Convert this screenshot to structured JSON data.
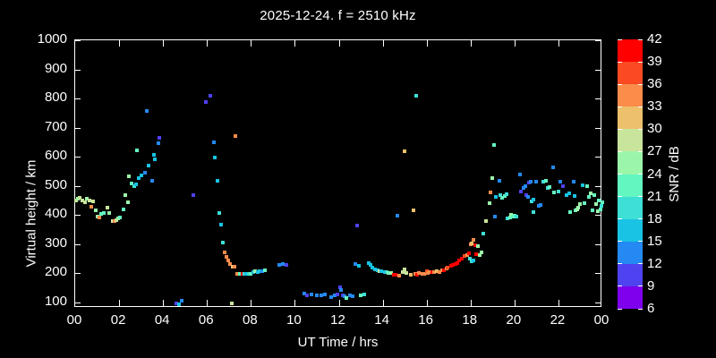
{
  "title": "2025-12-24. f = 2510 kHz",
  "axes": {
    "y_label": "Virtual height / km",
    "x_label": "UT Time / hrs",
    "y_ticks": [
      1000,
      900,
      800,
      700,
      600,
      500,
      400,
      300,
      200,
      100
    ],
    "x_ticks": [
      "00",
      "02",
      "04",
      "06",
      "08",
      "10",
      "12",
      "14",
      "16",
      "18",
      "20",
      "22",
      "00"
    ]
  },
  "colorbar": {
    "label": "SNR / dB",
    "tick_values": [
      42,
      39,
      36,
      33,
      30,
      27,
      24,
      21,
      18,
      15,
      12,
      9,
      6
    ],
    "range": [
      6,
      42
    ],
    "colors_top_to_bottom": [
      "#FF0000",
      "#FB4A21",
      "#FB8C4A",
      "#EDC06C",
      "#C9E49B",
      "#9CF6A9",
      "#63F6C1",
      "#3EDFD5",
      "#18C3E4",
      "#2489F2",
      "#4F42F1",
      "#7E00EC"
    ]
  },
  "chart_data": {
    "type": "scatter",
    "title": "2025-12-24. f = 2510 kHz",
    "xlabel": "UT Time / hrs",
    "ylabel": "Virtual height / km",
    "xlim": [
      0,
      24
    ],
    "ylim": [
      100,
      1000
    ],
    "grid": false,
    "colorbar_label": "SNR / dB",
    "colorbar_range": [
      6,
      42
    ],
    "point_format": [
      "ut_hour",
      "virtual_height_km",
      "snr_db"
    ],
    "points": [
      [
        0.02,
        450,
        28.5
      ],
      [
        0.12,
        455,
        25.5
      ],
      [
        0.22,
        458,
        28.5
      ],
      [
        0.32,
        450,
        28.5
      ],
      [
        0.45,
        445,
        28.5
      ],
      [
        0.55,
        456,
        25.5
      ],
      [
        0.65,
        450,
        28.5
      ],
      [
        0.72,
        428,
        34.5
      ],
      [
        0.82,
        448,
        28.5
      ],
      [
        0.92,
        416,
        25.5
      ],
      [
        1.0,
        394,
        25.5
      ],
      [
        1.1,
        392,
        34.5
      ],
      [
        1.2,
        404,
        22.5
      ],
      [
        1.3,
        406,
        22.5
      ],
      [
        1.45,
        427,
        28.5
      ],
      [
        1.56,
        408,
        25.5
      ],
      [
        1.7,
        380,
        28.5
      ],
      [
        1.8,
        378,
        34.5
      ],
      [
        1.88,
        382,
        28.5
      ],
      [
        1.95,
        390,
        25.5
      ],
      [
        2.05,
        392,
        22.5
      ],
      [
        2.2,
        418,
        22.5
      ],
      [
        2.3,
        470,
        25.5
      ],
      [
        2.42,
        444,
        25.5
      ],
      [
        2.45,
        534,
        25.5
      ],
      [
        2.57,
        508,
        22.5
      ],
      [
        2.7,
        498,
        19.5
      ],
      [
        2.78,
        505,
        16.5
      ],
      [
        2.8,
        623,
        22.5
      ],
      [
        2.9,
        528,
        16.5
      ],
      [
        3.0,
        536,
        16.5
      ],
      [
        3.17,
        544,
        13.5
      ],
      [
        3.27,
        756,
        13.5
      ],
      [
        3.34,
        569,
        16.5
      ],
      [
        3.5,
        518,
        13.5
      ],
      [
        3.57,
        608,
        16.5
      ],
      [
        3.62,
        592,
        16.5
      ],
      [
        3.79,
        647,
        13.5
      ],
      [
        3.85,
        664,
        10.5
      ],
      [
        4.6,
        97,
        10.5
      ],
      [
        4.72,
        94,
        16.5
      ],
      [
        4.85,
        105,
        13.5
      ],
      [
        5.38,
        470,
        10.5
      ],
      [
        5.95,
        787,
        10.5
      ],
      [
        6.17,
        810,
        10.5
      ],
      [
        6.3,
        649,
        13.5
      ],
      [
        6.37,
        598,
        16.5
      ],
      [
        6.49,
        518,
        16.5
      ],
      [
        6.55,
        408,
        19.5
      ],
      [
        6.64,
        367,
        16.5
      ],
      [
        6.74,
        306,
        19.5
      ],
      [
        6.82,
        272,
        34.5
      ],
      [
        6.9,
        258,
        34.5
      ],
      [
        6.98,
        244,
        34.5
      ],
      [
        7.06,
        232,
        34.5
      ],
      [
        7.12,
        96,
        28.5
      ],
      [
        7.17,
        224,
        31.5
      ],
      [
        7.24,
        222,
        34.5
      ],
      [
        7.28,
        672,
        34.5
      ],
      [
        7.38,
        198,
        34.5
      ],
      [
        7.5,
        199,
        22.5
      ],
      [
        7.6,
        199,
        40.5
      ],
      [
        7.7,
        197,
        19.5
      ],
      [
        7.8,
        198,
        16.5
      ],
      [
        7.9,
        198,
        19.5
      ],
      [
        8.0,
        198,
        22.5
      ],
      [
        8.1,
        204,
        16.5
      ],
      [
        8.2,
        206,
        25.5
      ],
      [
        8.3,
        204,
        16.5
      ],
      [
        8.4,
        208,
        16.5
      ],
      [
        8.5,
        209,
        13.5
      ],
      [
        8.65,
        212,
        22.5
      ],
      [
        9.3,
        228,
        13.5
      ],
      [
        9.45,
        233,
        13.5
      ],
      [
        9.6,
        230,
        10.5
      ],
      [
        10.45,
        130,
        13.5
      ],
      [
        10.57,
        125,
        10.5
      ],
      [
        10.75,
        128,
        13.5
      ],
      [
        11.0,
        126,
        13.5
      ],
      [
        11.2,
        126,
        13.5
      ],
      [
        11.35,
        129,
        13.5
      ],
      [
        11.65,
        118,
        13.5
      ],
      [
        11.8,
        124,
        13.5
      ],
      [
        11.95,
        127,
        10.5
      ],
      [
        12.05,
        152,
        10.5
      ],
      [
        12.12,
        143,
        13.5
      ],
      [
        12.18,
        125,
        10.5
      ],
      [
        12.28,
        120,
        13.5
      ],
      [
        12.35,
        115,
        22.5
      ],
      [
        12.5,
        124,
        13.5
      ],
      [
        12.62,
        122,
        13.5
      ],
      [
        13.0,
        125,
        22.5
      ],
      [
        13.15,
        128,
        19.5
      ],
      [
        12.75,
        232,
        13.5
      ],
      [
        12.9,
        226,
        16.5
      ],
      [
        12.82,
        364,
        10.5
      ],
      [
        13.38,
        236,
        16.5
      ],
      [
        13.45,
        228,
        16.5
      ],
      [
        13.52,
        220,
        16.5
      ],
      [
        13.65,
        214,
        16.5
      ],
      [
        13.76,
        212,
        16.5
      ],
      [
        13.85,
        208,
        28.5
      ],
      [
        13.95,
        208,
        16.5
      ],
      [
        14.08,
        205,
        16.5
      ],
      [
        14.18,
        204,
        19.5
      ],
      [
        14.25,
        201,
        25.5
      ],
      [
        14.32,
        200,
        22.5
      ],
      [
        14.4,
        200,
        25.5
      ],
      [
        14.5,
        196,
        40.5
      ],
      [
        14.6,
        195,
        40.5
      ],
      [
        14.75,
        192,
        34.5
      ],
      [
        14.9,
        203,
        28.5
      ],
      [
        15.0,
        214,
        28.5
      ],
      [
        15.07,
        202,
        28.5
      ],
      [
        15.3,
        195,
        31.5
      ],
      [
        15.48,
        197,
        34.5
      ],
      [
        15.58,
        195,
        40.5
      ],
      [
        15.66,
        201,
        34.5
      ],
      [
        15.8,
        199,
        34.5
      ],
      [
        15.9,
        198,
        34.5
      ],
      [
        16.0,
        208,
        37.5
      ],
      [
        16.07,
        200,
        34.5
      ],
      [
        16.15,
        204,
        34.5
      ],
      [
        16.25,
        205,
        40.5
      ],
      [
        16.35,
        203,
        34.5
      ],
      [
        16.48,
        206,
        31.5
      ],
      [
        16.57,
        205,
        34.5
      ],
      [
        16.7,
        212,
        34.5
      ],
      [
        16.8,
        210,
        40.5
      ],
      [
        16.9,
        216,
        34.5
      ],
      [
        16.97,
        220,
        37.5
      ],
      [
        17.1,
        226,
        40.5
      ],
      [
        17.2,
        230,
        40.5
      ],
      [
        17.3,
        233,
        40.5
      ],
      [
        17.4,
        236,
        40.5
      ],
      [
        17.5,
        244,
        40.5
      ],
      [
        17.6,
        250,
        40.5
      ],
      [
        17.73,
        260,
        37.5
      ],
      [
        17.85,
        263,
        34.5
      ],
      [
        17.92,
        268,
        40.5
      ],
      [
        17.95,
        252,
        19.5
      ],
      [
        18.05,
        240,
        19.5
      ],
      [
        18.15,
        243,
        16.5
      ],
      [
        18.0,
        300,
        34.5
      ],
      [
        18.07,
        303,
        31.5
      ],
      [
        18.12,
        314,
        34.5
      ],
      [
        18.2,
        296,
        40.5
      ],
      [
        18.27,
        266,
        40.5
      ],
      [
        18.35,
        293,
        25.5
      ],
      [
        18.42,
        262,
        25.5
      ],
      [
        18.5,
        272,
        25.5
      ],
      [
        14.68,
        398,
        13.5
      ],
      [
        15.0,
        619,
        31.5
      ],
      [
        15.4,
        416,
        31.5
      ],
      [
        15.52,
        809,
        19.5
      ],
      [
        18.6,
        337,
        19.5
      ],
      [
        18.7,
        381,
        28.5
      ],
      [
        18.85,
        441,
        25.5
      ],
      [
        18.92,
        478,
        34.5
      ],
      [
        19.0,
        528,
        25.5
      ],
      [
        19.08,
        640,
        22.5
      ],
      [
        19.1,
        396,
        13.5
      ],
      [
        19.17,
        462,
        16.5
      ],
      [
        19.3,
        518,
        13.5
      ],
      [
        19.35,
        470,
        19.5
      ],
      [
        19.45,
        458,
        22.5
      ],
      [
        19.55,
        465,
        22.5
      ],
      [
        19.62,
        472,
        19.5
      ],
      [
        19.7,
        388,
        19.5
      ],
      [
        19.8,
        393,
        22.5
      ],
      [
        19.85,
        400,
        25.5
      ],
      [
        19.92,
        396,
        22.5
      ],
      [
        20.0,
        398,
        22.5
      ],
      [
        20.1,
        395,
        19.5
      ],
      [
        20.25,
        539,
        13.5
      ],
      [
        20.3,
        481,
        10.5
      ],
      [
        20.4,
        494,
        13.5
      ],
      [
        20.5,
        499,
        13.5
      ],
      [
        20.55,
        469,
        10.5
      ],
      [
        20.62,
        462,
        13.5
      ],
      [
        20.65,
        512,
        10.5
      ],
      [
        20.72,
        515,
        13.5
      ],
      [
        20.8,
        447,
        19.5
      ],
      [
        20.88,
        453,
        16.5
      ],
      [
        20.85,
        410,
        19.5
      ],
      [
        21.0,
        515,
        13.5
      ],
      [
        21.1,
        432,
        13.5
      ],
      [
        21.2,
        435,
        13.5
      ],
      [
        21.32,
        514,
        19.5
      ],
      [
        21.45,
        517,
        22.5
      ],
      [
        21.5,
        493,
        19.5
      ],
      [
        21.6,
        497,
        22.5
      ],
      [
        21.75,
        565,
        13.5
      ],
      [
        21.82,
        478,
        22.5
      ],
      [
        22.0,
        481,
        19.5
      ],
      [
        22.1,
        515,
        13.5
      ],
      [
        22.2,
        500,
        10.5
      ],
      [
        22.35,
        469,
        16.5
      ],
      [
        22.5,
        475,
        16.5
      ],
      [
        22.55,
        410,
        22.5
      ],
      [
        22.68,
        514,
        13.5
      ],
      [
        22.72,
        466,
        16.5
      ],
      [
        22.78,
        416,
        22.5
      ],
      [
        22.85,
        419,
        25.5
      ],
      [
        22.92,
        426,
        25.5
      ],
      [
        23.0,
        438,
        25.5
      ],
      [
        23.1,
        502,
        16.5
      ],
      [
        23.2,
        441,
        22.5
      ],
      [
        23.3,
        499,
        22.5
      ],
      [
        23.37,
        462,
        22.5
      ],
      [
        23.48,
        475,
        25.5
      ],
      [
        23.55,
        416,
        22.5
      ],
      [
        23.62,
        468,
        22.5
      ],
      [
        23.7,
        438,
        25.5
      ],
      [
        23.78,
        413,
        25.5
      ],
      [
        23.85,
        450,
        22.5
      ],
      [
        23.9,
        419,
        22.5
      ],
      [
        23.95,
        432,
        19.5
      ],
      [
        23.98,
        443,
        22.5
      ]
    ]
  }
}
